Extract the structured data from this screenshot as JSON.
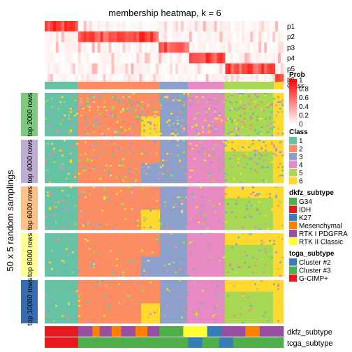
{
  "chart_data": {
    "type": "heatmap",
    "title": "membership heatmap, k = 6",
    "ylabel": "50 x 5 random samplings",
    "membership_rows": [
      "p1",
      "p2",
      "p3",
      "p4",
      "p5",
      "p6"
    ],
    "prob_legend": {
      "title": "Prob",
      "ticks": [
        "1",
        "0.8",
        "0.6",
        "0.4",
        "0.2",
        "0"
      ],
      "colors": [
        "#ff0000",
        "#ffffff"
      ]
    },
    "class_annotation_label": "Class",
    "class_legend": {
      "title": "Class",
      "items": [
        {
          "label": "1",
          "color": "#66c2a5"
        },
        {
          "label": "2",
          "color": "#fc8d62"
        },
        {
          "label": "3",
          "color": "#8da0cb"
        },
        {
          "label": "4",
          "color": "#e78ac3"
        },
        {
          "label": "5",
          "color": "#a6d854"
        },
        {
          "label": "6",
          "color": "#ffd92f"
        }
      ]
    },
    "class_segments": [
      {
        "class": 1,
        "fraction": 0.14
      },
      {
        "class": 2,
        "fraction": 0.34
      },
      {
        "class": 3,
        "fraction": 0.12
      },
      {
        "class": 4,
        "fraction": 0.15
      },
      {
        "class": 5,
        "fraction": 0.21
      },
      {
        "class": 6,
        "fraction": 0.04
      }
    ],
    "row_groups": [
      {
        "label": "top 2000 rows",
        "color": "#7fc97f"
      },
      {
        "label": "top 4000 rows",
        "color": "#beaed4"
      },
      {
        "label": "top 6000 rows",
        "color": "#fdc086"
      },
      {
        "label": "top 8000 rows",
        "color": "#ffff99"
      },
      {
        "label": "top 10000 rows",
        "color": "#386cb0"
      }
    ],
    "dkfz_legend": {
      "title": "dkfz_subtype",
      "items": [
        {
          "label": "G34",
          "color": "#4daf4a"
        },
        {
          "label": "IDH",
          "color": "#e41a1c"
        },
        {
          "label": "K27",
          "color": "#377eb8"
        },
        {
          "label": "Mesenchymal",
          "color": "#ff7f00"
        },
        {
          "label": "RTK I PDGFRA",
          "color": "#984ea3"
        },
        {
          "label": "RTK II Classic",
          "color": "#ffff33"
        }
      ]
    },
    "tcga_legend": {
      "title": "tcga_subtype",
      "items": [
        {
          "label": "Cluster #2",
          "color": "#377eb8"
        },
        {
          "label": "Cluster #3",
          "color": "#4daf4a"
        },
        {
          "label": "G-CIMP+",
          "color": "#e41a1c"
        }
      ]
    },
    "bottom_labels": {
      "dkfz": "dkfz_subtype",
      "tcga": "tcga_subtype"
    }
  }
}
